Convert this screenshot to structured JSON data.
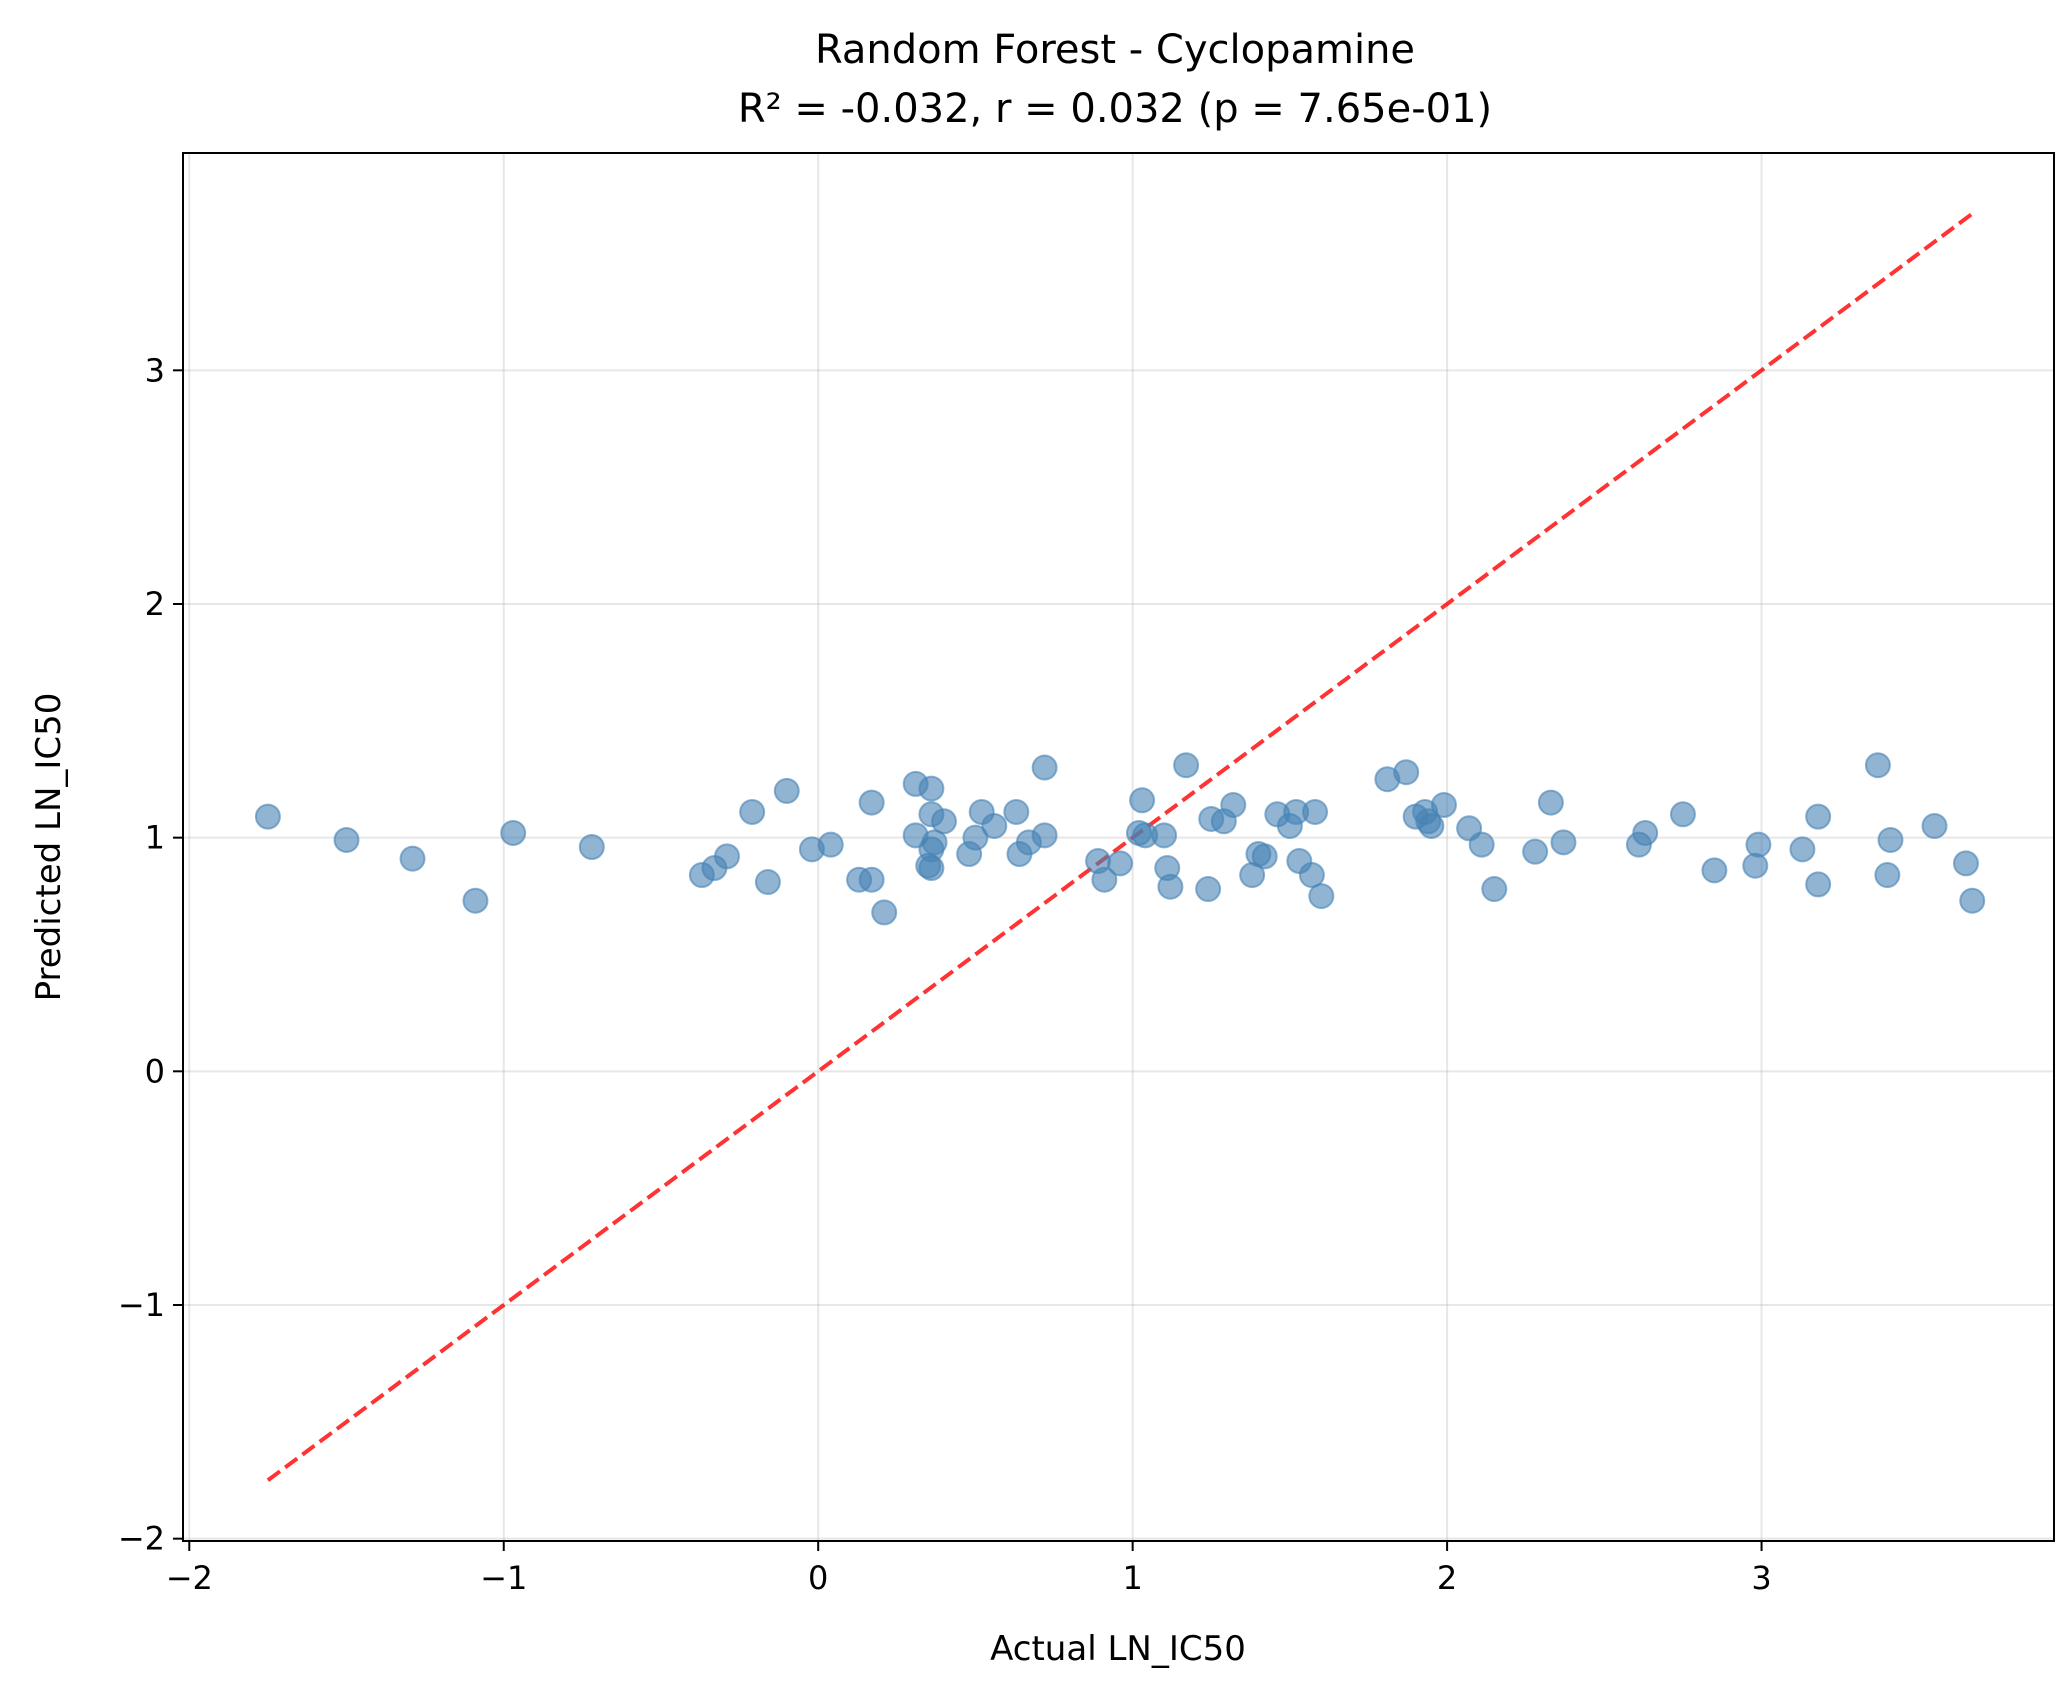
{
  "chart_data": {
    "type": "scatter",
    "title": "Random Forest - Cyclopamine",
    "subtitle": "R² = -0.032, r = 0.032 (p = 7.65e-01)",
    "xlabel": "Actual LN_IC50",
    "ylabel": "Predicted LN_IC50",
    "xlim": [
      -2.02,
      3.93
    ],
    "ylim": [
      -2.01,
      3.93
    ],
    "xticks": [
      -2,
      -1,
      0,
      1,
      2,
      3
    ],
    "yticks": [
      -2,
      -1,
      0,
      1,
      2,
      3
    ],
    "xtick_labels": [
      "−2",
      "−1",
      "0",
      "1",
      "2",
      "3"
    ],
    "ytick_labels": [
      "−2",
      "−1",
      "0",
      "1",
      "2",
      "3"
    ],
    "grid": true,
    "point_color": "#4682b4",
    "line_color": "#ff0000",
    "reference_line": {
      "style": "dashed",
      "x": [
        -1.75,
        3.67
      ],
      "y": [
        -1.75,
        3.67
      ]
    },
    "points": [
      {
        "x": -1.75,
        "y": 1.09
      },
      {
        "x": -1.5,
        "y": 0.99
      },
      {
        "x": -1.29,
        "y": 0.91
      },
      {
        "x": -1.09,
        "y": 0.73
      },
      {
        "x": -0.97,
        "y": 1.02
      },
      {
        "x": -0.72,
        "y": 0.96
      },
      {
        "x": -0.37,
        "y": 0.84
      },
      {
        "x": -0.33,
        "y": 0.87
      },
      {
        "x": -0.29,
        "y": 0.92
      },
      {
        "x": -0.21,
        "y": 1.11
      },
      {
        "x": -0.16,
        "y": 0.81
      },
      {
        "x": -0.1,
        "y": 1.2
      },
      {
        "x": -0.02,
        "y": 0.95
      },
      {
        "x": 0.04,
        "y": 0.97
      },
      {
        "x": 0.13,
        "y": 0.82
      },
      {
        "x": 0.17,
        "y": 0.82
      },
      {
        "x": 0.17,
        "y": 1.15
      },
      {
        "x": 0.21,
        "y": 0.68
      },
      {
        "x": 0.31,
        "y": 1.23
      },
      {
        "x": 0.31,
        "y": 1.01
      },
      {
        "x": 0.35,
        "y": 0.88
      },
      {
        "x": 0.36,
        "y": 1.21
      },
      {
        "x": 0.36,
        "y": 1.1
      },
      {
        "x": 0.36,
        "y": 0.95
      },
      {
        "x": 0.37,
        "y": 0.98
      },
      {
        "x": 0.36,
        "y": 0.87
      },
      {
        "x": 0.4,
        "y": 1.07
      },
      {
        "x": 0.48,
        "y": 0.93
      },
      {
        "x": 0.5,
        "y": 1.0
      },
      {
        "x": 0.52,
        "y": 1.11
      },
      {
        "x": 0.56,
        "y": 1.05
      },
      {
        "x": 0.63,
        "y": 1.11
      },
      {
        "x": 0.64,
        "y": 0.93
      },
      {
        "x": 0.67,
        "y": 0.98
      },
      {
        "x": 0.72,
        "y": 1.3
      },
      {
        "x": 0.72,
        "y": 1.01
      },
      {
        "x": 0.89,
        "y": 0.9
      },
      {
        "x": 0.91,
        "y": 0.82
      },
      {
        "x": 0.96,
        "y": 0.89
      },
      {
        "x": 1.02,
        "y": 1.02
      },
      {
        "x": 1.03,
        "y": 1.16
      },
      {
        "x": 1.04,
        "y": 1.01
      },
      {
        "x": 1.1,
        "y": 1.01
      },
      {
        "x": 1.11,
        "y": 0.87
      },
      {
        "x": 1.12,
        "y": 0.79
      },
      {
        "x": 1.17,
        "y": 1.31
      },
      {
        "x": 1.24,
        "y": 0.78
      },
      {
        "x": 1.25,
        "y": 1.08
      },
      {
        "x": 1.29,
        "y": 1.07
      },
      {
        "x": 1.32,
        "y": 1.14
      },
      {
        "x": 1.38,
        "y": 0.84
      },
      {
        "x": 1.4,
        "y": 0.93
      },
      {
        "x": 1.42,
        "y": 0.92
      },
      {
        "x": 1.46,
        "y": 1.1
      },
      {
        "x": 1.5,
        "y": 1.05
      },
      {
        "x": 1.52,
        "y": 1.11
      },
      {
        "x": 1.53,
        "y": 0.9
      },
      {
        "x": 1.57,
        "y": 0.84
      },
      {
        "x": 1.58,
        "y": 1.11
      },
      {
        "x": 1.6,
        "y": 0.75
      },
      {
        "x": 1.81,
        "y": 1.25
      },
      {
        "x": 1.87,
        "y": 1.28
      },
      {
        "x": 1.9,
        "y": 1.09
      },
      {
        "x": 1.93,
        "y": 1.11
      },
      {
        "x": 1.94,
        "y": 1.07
      },
      {
        "x": 1.95,
        "y": 1.05
      },
      {
        "x": 1.99,
        "y": 1.14
      },
      {
        "x": 2.07,
        "y": 1.04
      },
      {
        "x": 2.11,
        "y": 0.97
      },
      {
        "x": 2.15,
        "y": 0.78
      },
      {
        "x": 2.28,
        "y": 0.94
      },
      {
        "x": 2.33,
        "y": 1.15
      },
      {
        "x": 2.37,
        "y": 0.98
      },
      {
        "x": 2.61,
        "y": 0.97
      },
      {
        "x": 2.63,
        "y": 1.02
      },
      {
        "x": 2.75,
        "y": 1.1
      },
      {
        "x": 2.85,
        "y": 0.86
      },
      {
        "x": 2.98,
        "y": 0.88
      },
      {
        "x": 2.99,
        "y": 0.97
      },
      {
        "x": 3.13,
        "y": 0.95
      },
      {
        "x": 3.18,
        "y": 1.09
      },
      {
        "x": 3.18,
        "y": 0.8
      },
      {
        "x": 3.37,
        "y": 1.31
      },
      {
        "x": 3.4,
        "y": 0.84
      },
      {
        "x": 3.41,
        "y": 0.99
      },
      {
        "x": 3.55,
        "y": 1.05
      },
      {
        "x": 3.65,
        "y": 0.89
      },
      {
        "x": 3.67,
        "y": 0.73
      }
    ]
  }
}
